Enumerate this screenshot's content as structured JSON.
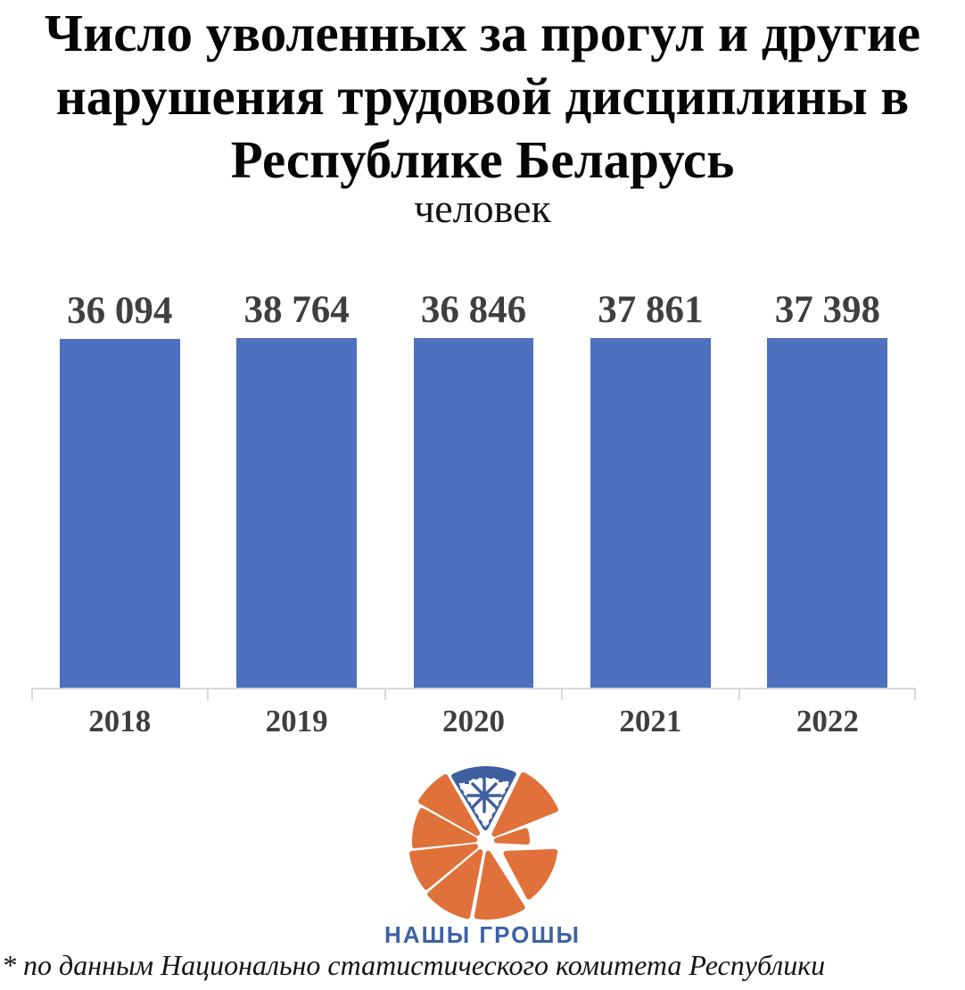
{
  "header": {
    "title_lines": [
      "Число уволенных за прогул и другие",
      "нарушения трудовой дисциплины в",
      "Республике Беларусь"
    ],
    "subtitle": "человек"
  },
  "chart_data": {
    "type": "bar",
    "title": "Число уволенных за прогул и другие нарушения трудовой дисциплины в Республике Беларусь",
    "ylabel": "человек",
    "xlabel": "",
    "categories": [
      "2018",
      "2019",
      "2020",
      "2021",
      "2022"
    ],
    "values": [
      36094,
      38764,
      36846,
      37861,
      37398
    ],
    "value_labels": [
      "36 094",
      "38 764",
      "36 846",
      "37 861",
      "37 398"
    ],
    "ylim": [
      15000,
      39000
    ],
    "gridlines": false,
    "legend": "none",
    "bar_color": "#4e70be",
    "data_label_color": "#3f3f3f",
    "axis_color": "#d9d9d9"
  },
  "footer": {
    "logo_text": "НАШЫ ГРОШЫ",
    "logo_orange": "#e0713a",
    "logo_blue": "#3e5f9e",
    "logo_text_color": "#3d61a6",
    "footnote": "* по данным Национально статистического комитета Республики"
  }
}
